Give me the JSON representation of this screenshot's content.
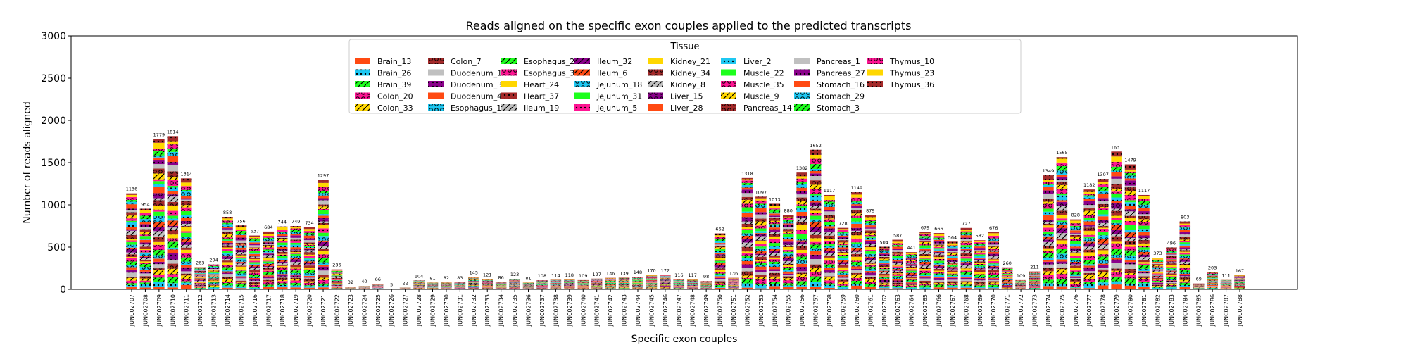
{
  "chart_data": {
    "type": "bar",
    "stacked": true,
    "title": "Reads aligned on the specific exon couples applied to the predicted transcripts",
    "xlabel": "Specific exon couples",
    "ylabel": "Number of reads aligned",
    "ylim": [
      0,
      3000
    ],
    "yticks": [
      0,
      500,
      1000,
      1500,
      2000,
      2500,
      3000
    ],
    "grid": false,
    "legend": {
      "title": "Tissue",
      "placement": "top-center",
      "ncol": 9,
      "entries": [
        {
          "name": "Brain_13",
          "color": "#ff4a12",
          "hatch": "none"
        },
        {
          "name": "Brain_26",
          "color": "#1ec8f2",
          "hatch": "dots"
        },
        {
          "name": "Brain_39",
          "color": "#1dff1d",
          "hatch": "slash"
        },
        {
          "name": "Colon_20",
          "color": "#ff1493",
          "hatch": "rings"
        },
        {
          "name": "Colon_33",
          "color": "#ffd700",
          "hatch": "slash"
        },
        {
          "name": "Colon_7",
          "color": "#a52a2a",
          "hatch": "rings"
        },
        {
          "name": "Duodenum_17",
          "color": "#c0c0c0",
          "hatch": "none"
        },
        {
          "name": "Duodenum_30",
          "color": "#8b008b",
          "hatch": "dots"
        },
        {
          "name": "Duodenum_4",
          "color": "#ff4a12",
          "hatch": "none"
        },
        {
          "name": "Esophagus_12",
          "color": "#1ec8f2",
          "hatch": "rings"
        },
        {
          "name": "Esophagus_25",
          "color": "#1dff1d",
          "hatch": "slash"
        },
        {
          "name": "Esophagus_38",
          "color": "#ff1493",
          "hatch": "rings"
        },
        {
          "name": "Heart_24",
          "color": "#ffd700",
          "hatch": "none"
        },
        {
          "name": "Heart_37",
          "color": "#a52a2a",
          "hatch": "dots"
        },
        {
          "name": "Ileum_19",
          "color": "#c0c0c0",
          "hatch": "slash"
        },
        {
          "name": "Ileum_32",
          "color": "#8b008b",
          "hatch": "slash"
        },
        {
          "name": "Ileum_6",
          "color": "#ff4a12",
          "hatch": "slash"
        },
        {
          "name": "Jejunum_18",
          "color": "#1ec8f2",
          "hatch": "rings"
        },
        {
          "name": "Jejunum_31",
          "color": "#1dff1d",
          "hatch": "none"
        },
        {
          "name": "Jejunum_5",
          "color": "#ff1493",
          "hatch": "dots"
        },
        {
          "name": "Kidney_21",
          "color": "#ffd700",
          "hatch": "none"
        },
        {
          "name": "Kidney_34",
          "color": "#a52a2a",
          "hatch": "rings"
        },
        {
          "name": "Kidney_8",
          "color": "#c0c0c0",
          "hatch": "slash"
        },
        {
          "name": "Liver_15",
          "color": "#8b008b",
          "hatch": "rings"
        },
        {
          "name": "Liver_28",
          "color": "#ff4a12",
          "hatch": "none"
        },
        {
          "name": "Liver_2",
          "color": "#1ec8f2",
          "hatch": "dots"
        },
        {
          "name": "Muscle_22",
          "color": "#1dff1d",
          "hatch": "none"
        },
        {
          "name": "Muscle_35",
          "color": "#ff1493",
          "hatch": "rings"
        },
        {
          "name": "Muscle_9",
          "color": "#ffd700",
          "hatch": "slash"
        },
        {
          "name": "Pancreas_14",
          "color": "#a52a2a",
          "hatch": "rings"
        },
        {
          "name": "Pancreas_1",
          "color": "#c0c0c0",
          "hatch": "none"
        },
        {
          "name": "Pancreas_27",
          "color": "#8b008b",
          "hatch": "dots"
        },
        {
          "name": "Stomach_16",
          "color": "#ff4a12",
          "hatch": "none"
        },
        {
          "name": "Stomach_29",
          "color": "#1ec8f2",
          "hatch": "rings"
        },
        {
          "name": "Stomach_3",
          "color": "#1dff1d",
          "hatch": "slash"
        },
        {
          "name": "Thymus_10",
          "color": "#ff1493",
          "hatch": "rings"
        },
        {
          "name": "Thymus_23",
          "color": "#ffd700",
          "hatch": "none"
        },
        {
          "name": "Thymus_36",
          "color": "#a52a2a",
          "hatch": "dots"
        }
      ]
    },
    "categories": [
      "JUNC02707",
      "JUNC02708",
      "JUNC02709",
      "JUNC02710",
      "JUNC02711",
      "JUNC02712",
      "JUNC02713",
      "JUNC02714",
      "JUNC02715",
      "JUNC02716",
      "JUNC02717",
      "JUNC02718",
      "JUNC02719",
      "JUNC02720",
      "JUNC02721",
      "JUNC02722",
      "JUNC02723",
      "JUNC02724",
      "JUNC02725",
      "JUNC02726",
      "JUNC02727",
      "JUNC02728",
      "JUNC02729",
      "JUNC02730",
      "JUNC02731",
      "JUNC02732",
      "JUNC02733",
      "JUNC02734",
      "JUNC02735",
      "JUNC02736",
      "JUNC02737",
      "JUNC02738",
      "JUNC02739",
      "JUNC02740",
      "JUNC02741",
      "JUNC02742",
      "JUNC02743",
      "JUNC02744",
      "JUNC02745",
      "JUNC02746",
      "JUNC02747",
      "JUNC02748",
      "JUNC02749",
      "JUNC02750",
      "JUNC02751",
      "JUNC02752",
      "JUNC02753",
      "JUNC02754",
      "JUNC02755",
      "JUNC02756",
      "JUNC02757",
      "JUNC02758",
      "JUNC02759",
      "JUNC02760",
      "JUNC02761",
      "JUNC02762",
      "JUNC02763",
      "JUNC02764",
      "JUNC02765",
      "JUNC02766",
      "JUNC02767",
      "JUNC02768",
      "JUNC02769",
      "JUNC02770",
      "JUNC02771",
      "JUNC02772",
      "JUNC02773",
      "JUNC02774",
      "JUNC02775",
      "JUNC02776",
      "JUNC02777",
      "JUNC02778",
      "JUNC02779",
      "JUNC02780",
      "JUNC02781",
      "JUNC02782",
      "JUNC02783",
      "JUNC02784",
      "JUNC02785",
      "JUNC02786",
      "JUNC02787",
      "JUNC02788"
    ],
    "totals": [
      1136,
      954,
      1779,
      1814,
      1314,
      263,
      294,
      858,
      756,
      637,
      684,
      744,
      749,
      734,
      1297,
      236,
      32,
      40,
      66,
      5,
      22,
      104,
      81,
      82,
      83,
      145,
      121,
      86,
      123,
      81,
      108,
      114,
      118,
      109,
      127,
      136,
      139,
      148,
      170,
      172,
      116,
      117,
      98,
      662,
      136,
      1318,
      1097,
      1013,
      880,
      1382,
      1652,
      1117,
      728,
      1149,
      879,
      504,
      587,
      441,
      679,
      666,
      564,
      727,
      582,
      676,
      260,
      109,
      211,
      1349,
      1565,
      828,
      1182,
      1307,
      1631,
      1479,
      1117,
      373,
      496,
      803,
      69,
      203,
      111,
      167
    ]
  }
}
